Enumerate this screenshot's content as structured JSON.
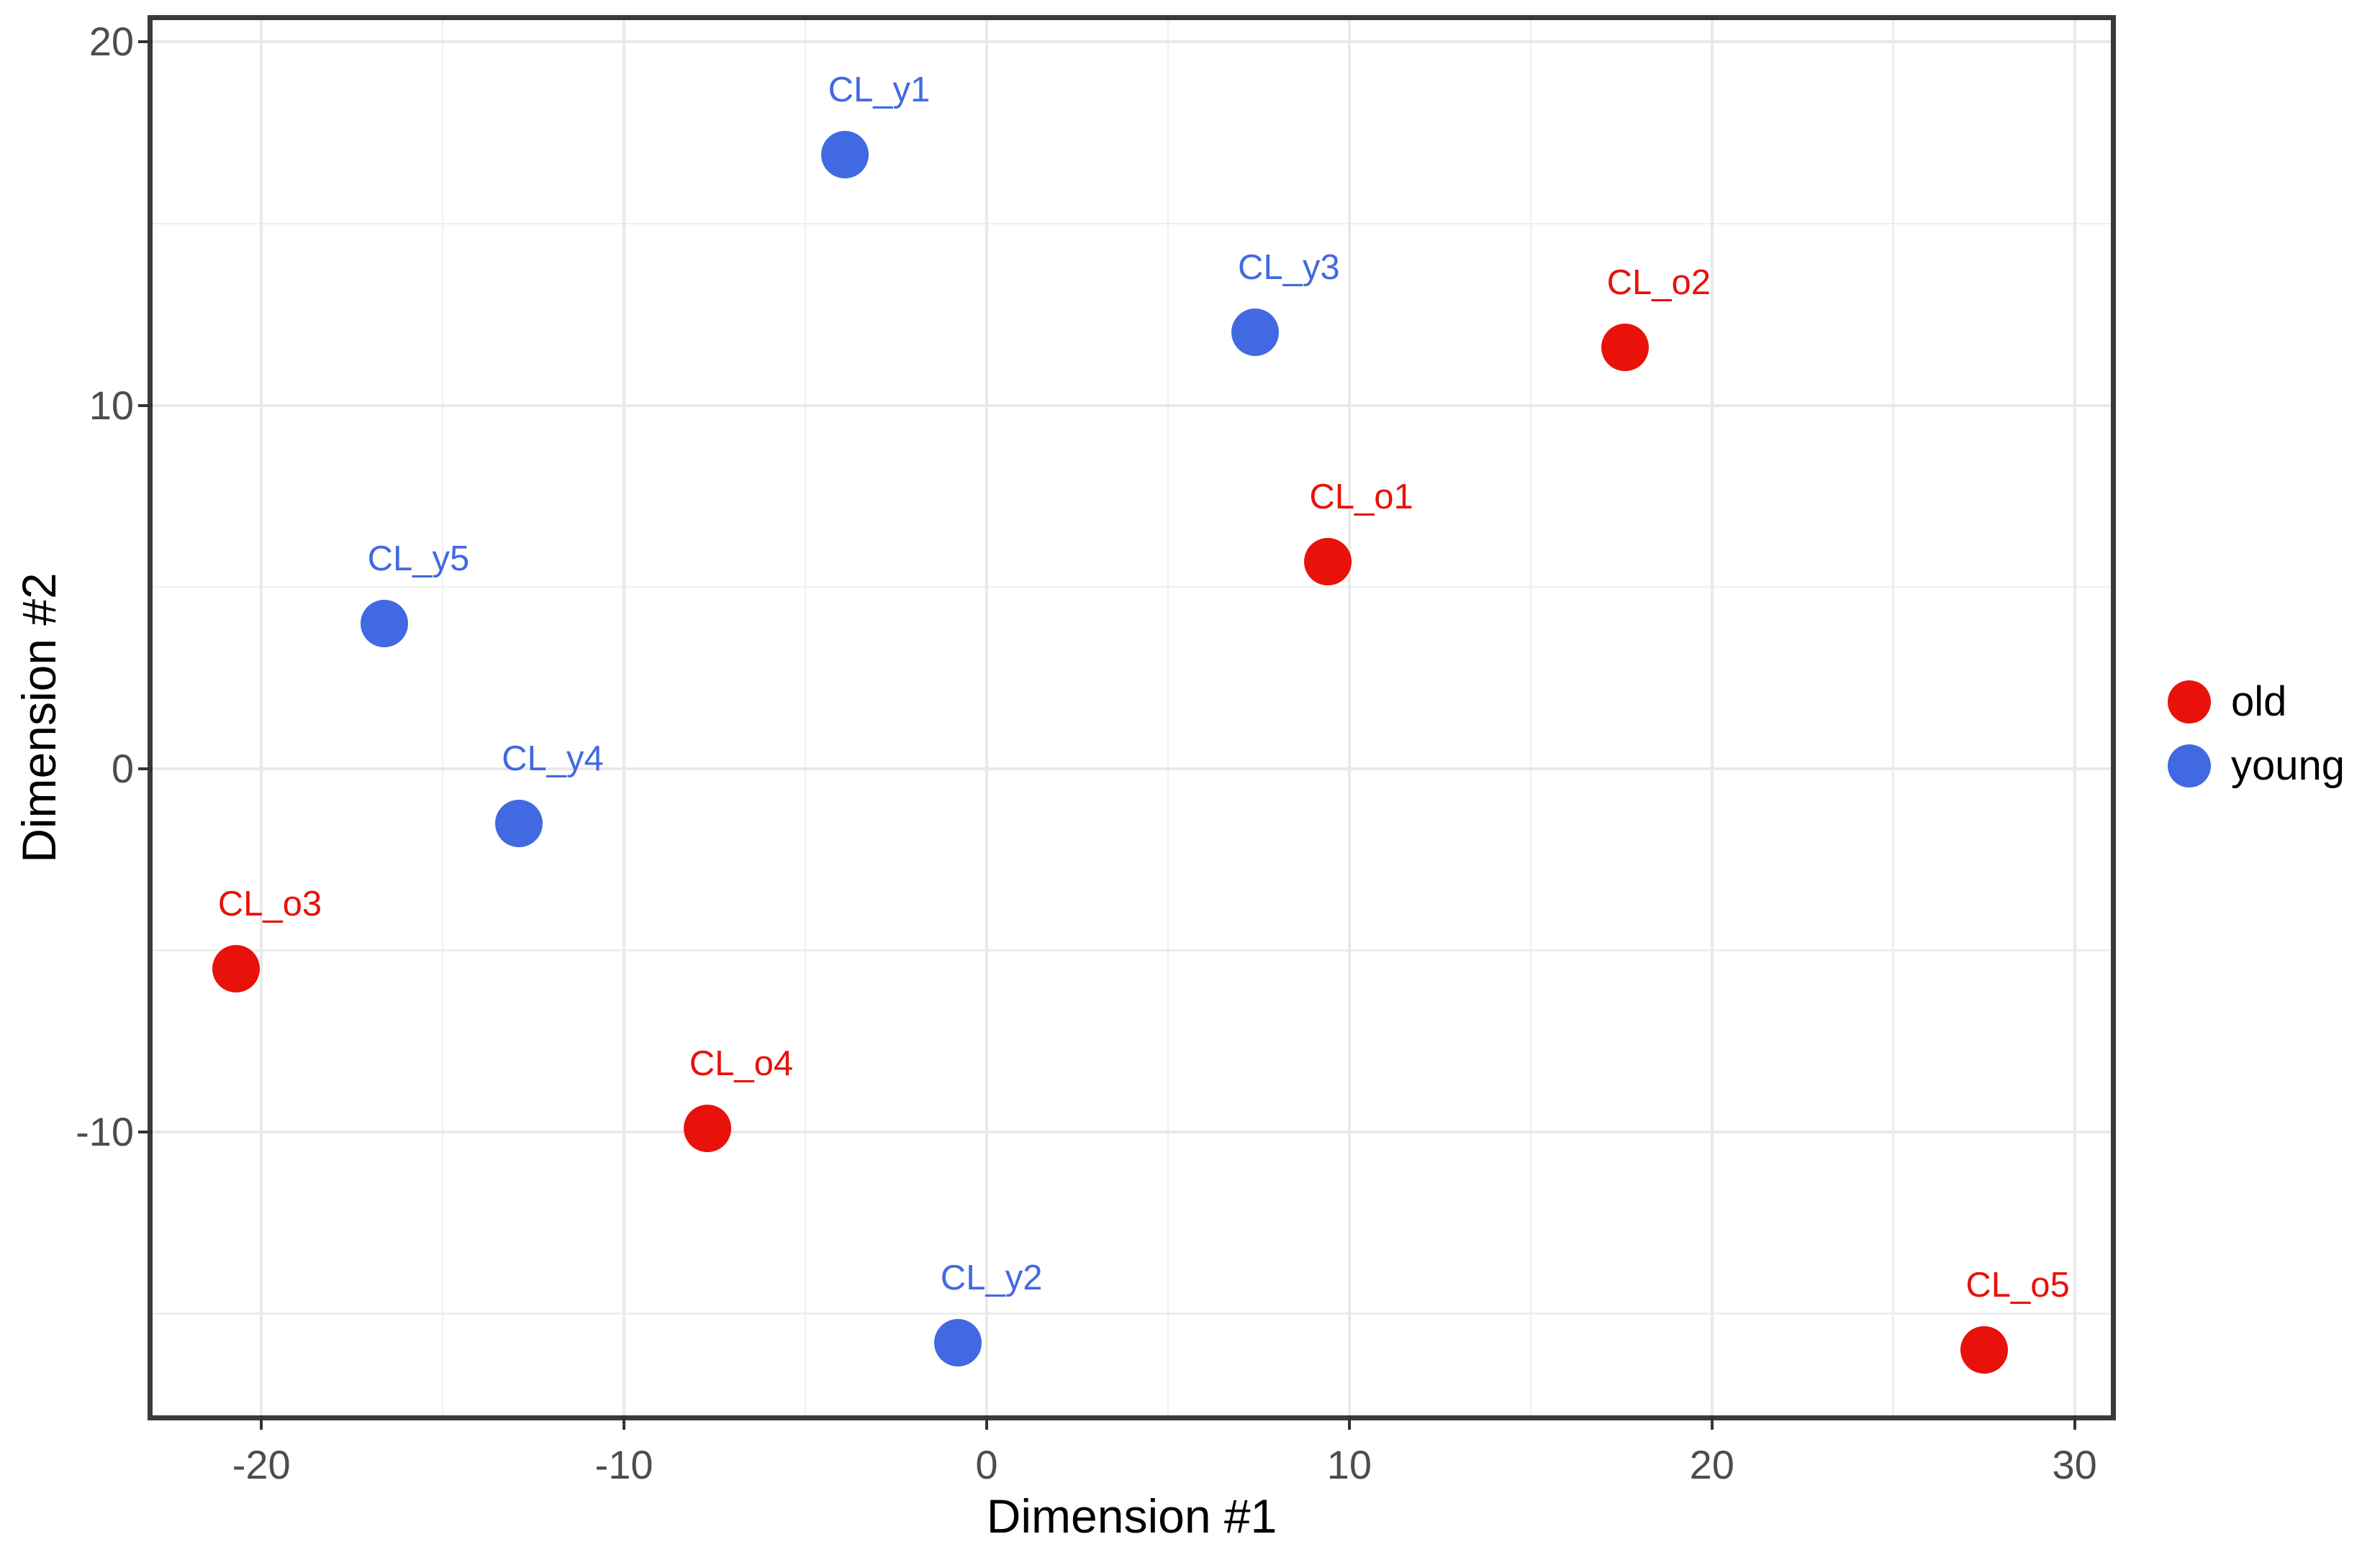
{
  "chart_data": {
    "type": "scatter",
    "title": "",
    "xlabel": "Dimension #1",
    "ylabel": "Dimension #2",
    "xlim": [
      -23,
      31
    ],
    "ylim": [
      -17.8,
      20.6
    ],
    "x_major_ticks": [
      -20,
      -10,
      0,
      10,
      20,
      30
    ],
    "x_minor_ticks": [
      -15,
      -5,
      5,
      15,
      25
    ],
    "y_major_ticks": [
      20,
      10,
      0,
      -10
    ],
    "y_minor_ticks": [
      15,
      5,
      -5,
      -15
    ],
    "grid": "major and minor gridlines, light gray on white, dark panel border",
    "legend_position": "right",
    "series": [
      {
        "name": "old",
        "color": "#e8120b",
        "points": [
          {
            "label": "CL_o1",
            "x": 9.4,
            "y": 5.7
          },
          {
            "label": "CL_o2",
            "x": 17.6,
            "y": 11.6
          },
          {
            "label": "CL_o3",
            "x": -20.7,
            "y": -5.5
          },
          {
            "label": "CL_o4",
            "x": -7.7,
            "y": -9.9
          },
          {
            "label": "CL_o5",
            "x": 27.5,
            "y": -16.0
          }
        ]
      },
      {
        "name": "young",
        "color": "#4169e1",
        "points": [
          {
            "label": "CL_y1",
            "x": -3.9,
            "y": 16.9
          },
          {
            "label": "CL_y2",
            "x": -0.8,
            "y": -15.8
          },
          {
            "label": "CL_y3",
            "x": 7.4,
            "y": 12.0
          },
          {
            "label": "CL_y4",
            "x": -12.9,
            "y": -1.5
          },
          {
            "label": "CL_y5",
            "x": -16.6,
            "y": 4.0
          }
        ]
      }
    ]
  },
  "axes": {
    "x_title": "Dimension #1",
    "y_title": "Dimension #2",
    "x_tick_labels": [
      "-20",
      "-10",
      "0",
      "10",
      "20",
      "30"
    ],
    "y_tick_labels": [
      "20",
      "10",
      "0",
      "-10"
    ]
  },
  "legend": {
    "entries": [
      {
        "label": "old",
        "color": "#e8120b"
      },
      {
        "label": "young",
        "color": "#4169e1"
      }
    ]
  },
  "colors": {
    "old": "#e8120b",
    "young": "#4169e1",
    "panel_border": "#3a3a3a",
    "grid_major": "#e9e9e9",
    "grid_minor": "#eeeeee",
    "tick_text": "#4d4d4d",
    "axis_title_text": "#000000",
    "background": "#ffffff"
  }
}
